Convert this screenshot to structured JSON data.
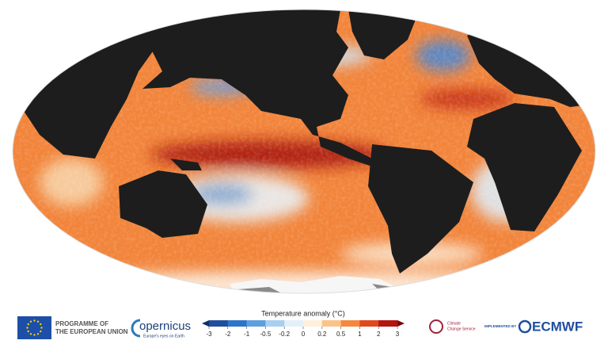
{
  "legend": {
    "title": "Temperature anomaly (°C)",
    "ticks": [
      -3,
      -2,
      -1,
      -0.5,
      -0.2,
      0,
      0.2,
      0.5,
      1,
      2,
      3
    ],
    "colors": [
      "#1f4e9c",
      "#2f74c8",
      "#5d9fe0",
      "#a8cff0",
      "#e3f0f8",
      "#fdf1dc",
      "#fbc38a",
      "#f5883f",
      "#e0481d",
      "#b3150f"
    ],
    "under": "#08306b",
    "over": "#7a0505"
  },
  "footer": {
    "eu": [
      "PROGRAMME OF",
      "THE EUROPEAN UNION"
    ],
    "copernicus": {
      "name": "opernicus",
      "tagline": "Europe's eyes on Earth"
    },
    "climate": [
      "Climate",
      "Change Service"
    ],
    "implemented": "IMPLEMENTED BY",
    "ecmwf": "ECMWF"
  }
}
